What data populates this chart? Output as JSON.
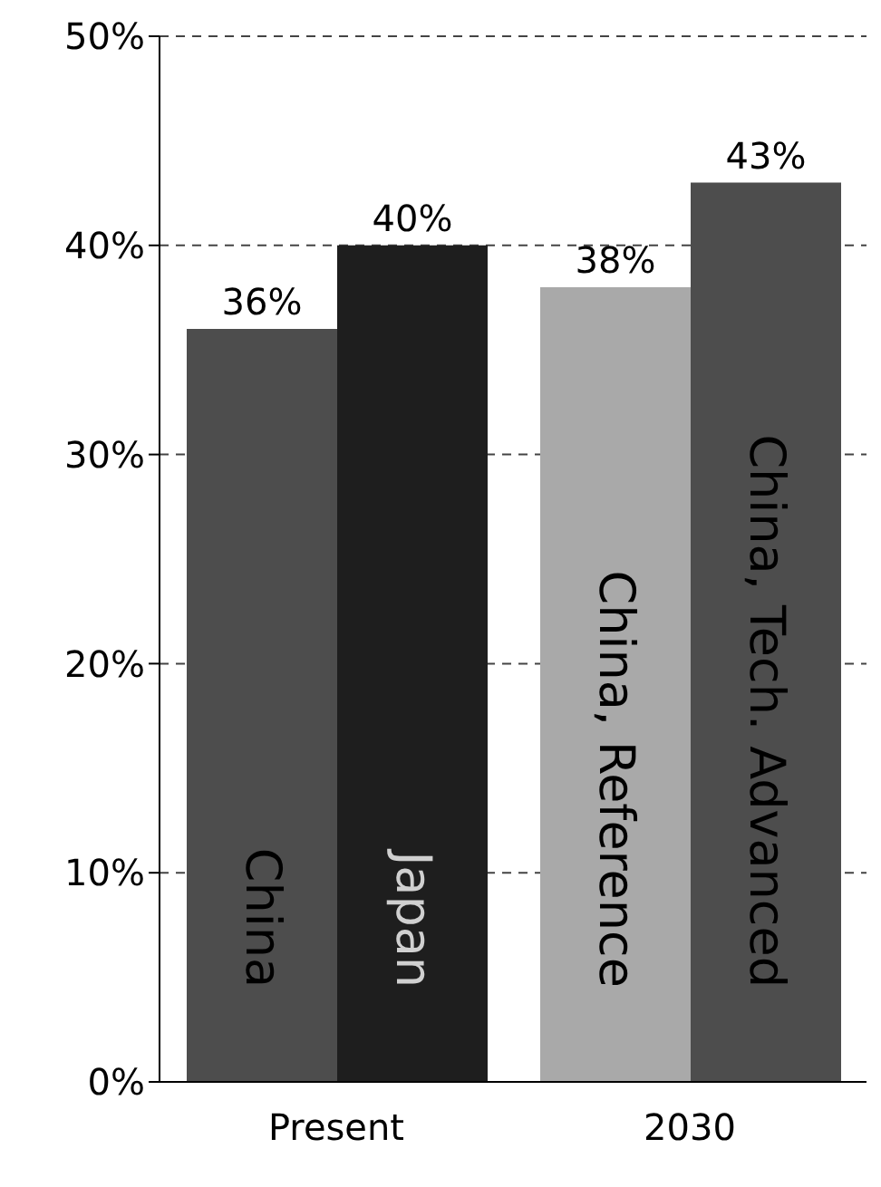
{
  "chart_data": {
    "type": "bar",
    "categories": [
      "Present",
      "2030"
    ],
    "series": [
      {
        "colors": [
          "#4d4d4d",
          "#a9a9a9"
        ],
        "values": [
          36,
          38
        ],
        "value_labels": [
          "36%",
          "38%"
        ]
      },
      {
        "colors": [
          "#1e1e1e",
          "#4d4d4d"
        ],
        "values": [
          40,
          43
        ],
        "value_labels": [
          "40%",
          "43%"
        ]
      }
    ],
    "ylim": [
      0,
      50
    ],
    "yticks": [
      {
        "value": 0,
        "label": "0%"
      },
      {
        "value": 10,
        "label": "10%"
      },
      {
        "value": 20,
        "label": "20%"
      },
      {
        "value": 30,
        "label": "30%"
      },
      {
        "value": 40,
        "label": "40%"
      },
      {
        "value": 50,
        "label": "50%"
      }
    ],
    "grid": "y",
    "annotations": [
      {
        "text": "China",
        "x": "Present"
      },
      {
        "text": "Japan",
        "x": "Present"
      },
      {
        "text": "China, Reference",
        "x": "2030"
      },
      {
        "text": "China, Tech. Advanced",
        "x": "2030"
      }
    ]
  }
}
